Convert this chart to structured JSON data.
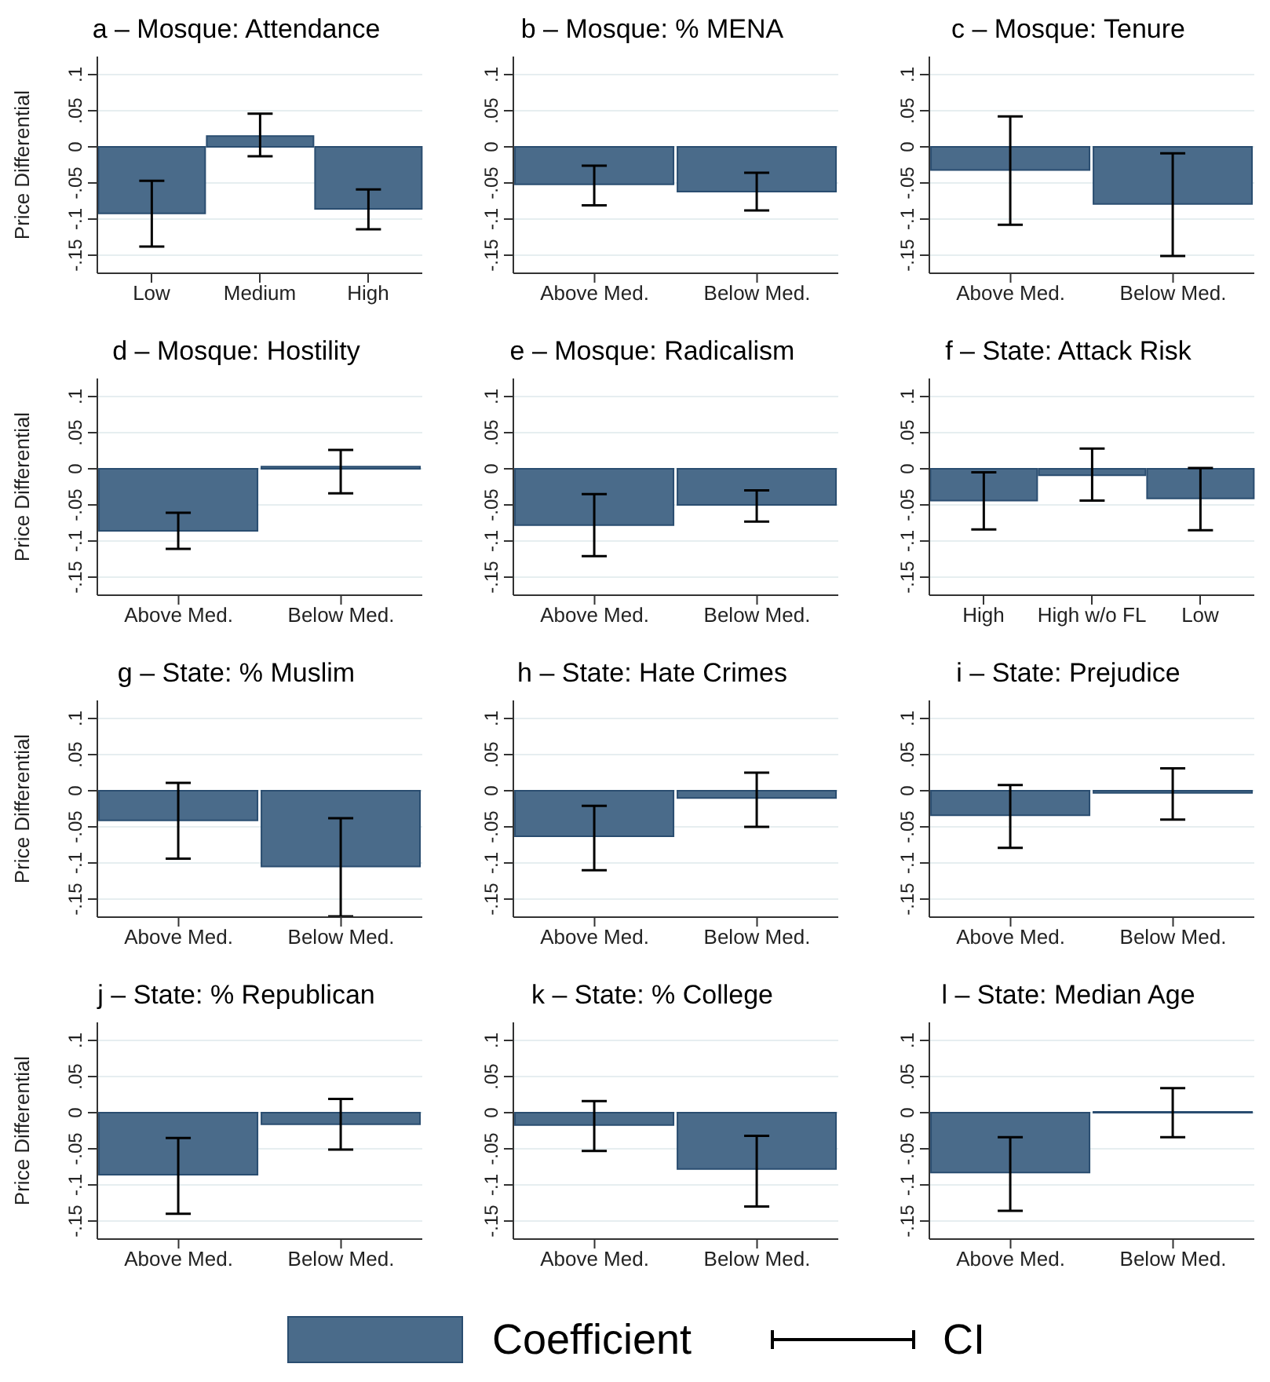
{
  "chart_data": [
    {
      "type": "bar",
      "title": "a – Mosque: Attendance",
      "ylabel": "Price Differential",
      "categories": [
        "Low",
        "Medium",
        "High"
      ],
      "series": [
        {
          "color": "#4a6b8a",
          "values": [
            -0.092,
            0.015,
            -0.086
          ],
          "errors": [
            [
              -0.138,
              -0.047
            ],
            [
              -0.013,
              0.046
            ],
            [
              -0.114,
              -0.059
            ]
          ]
        }
      ],
      "ylim": [
        -0.175,
        0.125
      ],
      "yticks": [
        {
          "value": -0.15,
          "label": "-.15"
        },
        {
          "value": -0.1,
          "label": "-.1"
        },
        {
          "value": -0.05,
          "label": "-.05"
        },
        {
          "value": 0,
          "label": "0"
        },
        {
          "value": 0.05,
          "label": ".05"
        },
        {
          "value": 0.1,
          "label": ".1"
        }
      ],
      "grid": "y"
    },
    {
      "type": "bar",
      "title": "b – Mosque: % MENA",
      "categories": [
        "Above Med.",
        "Below Med."
      ],
      "series": [
        {
          "color": "#4a6b8a",
          "values": [
            -0.052,
            -0.062
          ],
          "errors": [
            [
              -0.081,
              -0.026
            ],
            [
              -0.088,
              -0.036
            ]
          ]
        }
      ],
      "ylim": [
        -0.175,
        0.125
      ],
      "yticks": [
        {
          "value": -0.15,
          "label": "-.15"
        },
        {
          "value": -0.1,
          "label": "-.1"
        },
        {
          "value": -0.05,
          "label": "-.05"
        },
        {
          "value": 0,
          "label": "0"
        },
        {
          "value": 0.05,
          "label": ".05"
        },
        {
          "value": 0.1,
          "label": ".1"
        }
      ],
      "grid": "y"
    },
    {
      "type": "bar",
      "title": "c – Mosque: Tenure",
      "categories": [
        "Above Med.",
        "Below Med."
      ],
      "series": [
        {
          "color": "#4a6b8a",
          "values": [
            -0.032,
            -0.079
          ],
          "errors": [
            [
              -0.108,
              0.042
            ],
            [
              -0.151,
              -0.009
            ]
          ]
        }
      ],
      "ylim": [
        -0.175,
        0.125
      ],
      "yticks": [
        {
          "value": -0.15,
          "label": "-.15"
        },
        {
          "value": -0.1,
          "label": "-.1"
        },
        {
          "value": -0.05,
          "label": "-.05"
        },
        {
          "value": 0,
          "label": "0"
        },
        {
          "value": 0.05,
          "label": ".05"
        },
        {
          "value": 0.1,
          "label": ".1"
        }
      ],
      "grid": "y"
    },
    {
      "type": "bar",
      "title": "d – Mosque: Hostility",
      "ylabel": "Price Differential",
      "categories": [
        "Above Med.",
        "Below Med."
      ],
      "series": [
        {
          "color": "#4a6b8a",
          "values": [
            -0.086,
            0.003
          ],
          "errors": [
            [
              -0.111,
              -0.061
            ],
            [
              -0.034,
              0.026
            ]
          ]
        }
      ],
      "ylim": [
        -0.175,
        0.125
      ],
      "yticks": [
        {
          "value": -0.15,
          "label": "-.15"
        },
        {
          "value": -0.1,
          "label": "-.1"
        },
        {
          "value": -0.05,
          "label": "-.05"
        },
        {
          "value": 0,
          "label": "0"
        },
        {
          "value": 0.05,
          "label": ".05"
        },
        {
          "value": 0.1,
          "label": ".1"
        }
      ],
      "grid": "y"
    },
    {
      "type": "bar",
      "title": "e – Mosque: Radicalism",
      "categories": [
        "Above Med.",
        "Below Med."
      ],
      "series": [
        {
          "color": "#4a6b8a",
          "values": [
            -0.078,
            -0.05
          ],
          "errors": [
            [
              -0.121,
              -0.035
            ],
            [
              -0.073,
              -0.03
            ]
          ]
        }
      ],
      "ylim": [
        -0.175,
        0.125
      ],
      "yticks": [
        {
          "value": -0.15,
          "label": "-.15"
        },
        {
          "value": -0.1,
          "label": "-.1"
        },
        {
          "value": -0.05,
          "label": "-.05"
        },
        {
          "value": 0,
          "label": "0"
        },
        {
          "value": 0.05,
          "label": ".05"
        },
        {
          "value": 0.1,
          "label": ".1"
        }
      ],
      "grid": "y"
    },
    {
      "type": "bar",
      "title": "f – State: Attack Risk",
      "categories": [
        "High",
        "High w/o FL",
        "Low"
      ],
      "series": [
        {
          "color": "#4a6b8a",
          "values": [
            -0.044,
            -0.009,
            -0.041
          ],
          "errors": [
            [
              -0.084,
              -0.005
            ],
            [
              -0.044,
              0.028
            ],
            [
              -0.085,
              0.001
            ]
          ]
        }
      ],
      "ylim": [
        -0.175,
        0.125
      ],
      "yticks": [
        {
          "value": -0.15,
          "label": "-.15"
        },
        {
          "value": -0.1,
          "label": "-.1"
        },
        {
          "value": -0.05,
          "label": "-.05"
        },
        {
          "value": 0,
          "label": "0"
        },
        {
          "value": 0.05,
          "label": ".05"
        },
        {
          "value": 0.1,
          "label": ".1"
        }
      ],
      "grid": "y"
    },
    {
      "type": "bar",
      "title": "g – State: % Muslim",
      "ylabel": "Price Differential",
      "categories": [
        "Above Med.",
        "Below Med."
      ],
      "series": [
        {
          "color": "#4a6b8a",
          "values": [
            -0.041,
            -0.105
          ],
          "errors": [
            [
              -0.094,
              0.011
            ],
            [
              -0.174,
              -0.038
            ]
          ]
        }
      ],
      "ylim": [
        -0.175,
        0.125
      ],
      "yticks": [
        {
          "value": -0.15,
          "label": "-.15"
        },
        {
          "value": -0.1,
          "label": "-.1"
        },
        {
          "value": -0.05,
          "label": "-.05"
        },
        {
          "value": 0,
          "label": "0"
        },
        {
          "value": 0.05,
          "label": ".05"
        },
        {
          "value": 0.1,
          "label": ".1"
        }
      ],
      "grid": "y"
    },
    {
      "type": "bar",
      "title": "h – State: Hate Crimes",
      "categories": [
        "Above Med.",
        "Below Med."
      ],
      "series": [
        {
          "color": "#4a6b8a",
          "values": [
            -0.063,
            -0.01
          ],
          "errors": [
            [
              -0.11,
              -0.021
            ],
            [
              -0.05,
              0.025
            ]
          ]
        }
      ],
      "ylim": [
        -0.175,
        0.125
      ],
      "yticks": [
        {
          "value": -0.15,
          "label": "-.15"
        },
        {
          "value": -0.1,
          "label": "-.1"
        },
        {
          "value": -0.05,
          "label": "-.05"
        },
        {
          "value": 0,
          "label": "0"
        },
        {
          "value": 0.05,
          "label": ".05"
        },
        {
          "value": 0.1,
          "label": ".1"
        }
      ],
      "grid": "y"
    },
    {
      "type": "bar",
      "title": "i – State: Prejudice",
      "categories": [
        "Above Med.",
        "Below Med."
      ],
      "series": [
        {
          "color": "#4a6b8a",
          "values": [
            -0.034,
            -0.003
          ],
          "errors": [
            [
              -0.079,
              0.008
            ],
            [
              -0.04,
              0.031
            ]
          ]
        }
      ],
      "ylim": [
        -0.175,
        0.125
      ],
      "yticks": [
        {
          "value": -0.15,
          "label": "-.15"
        },
        {
          "value": -0.1,
          "label": "-.1"
        },
        {
          "value": -0.05,
          "label": "-.05"
        },
        {
          "value": 0,
          "label": "0"
        },
        {
          "value": 0.05,
          "label": ".05"
        },
        {
          "value": 0.1,
          "label": ".1"
        }
      ],
      "grid": "y"
    },
    {
      "type": "bar",
      "title": "j – State: % Republican",
      "ylabel": "Price Differential",
      "categories": [
        "Above Med.",
        "Below Med."
      ],
      "series": [
        {
          "color": "#4a6b8a",
          "values": [
            -0.086,
            -0.016
          ],
          "errors": [
            [
              -0.14,
              -0.035
            ],
            [
              -0.051,
              0.019
            ]
          ]
        }
      ],
      "ylim": [
        -0.175,
        0.125
      ],
      "yticks": [
        {
          "value": -0.15,
          "label": "-.15"
        },
        {
          "value": -0.1,
          "label": "-.1"
        },
        {
          "value": -0.05,
          "label": "-.05"
        },
        {
          "value": 0,
          "label": "0"
        },
        {
          "value": 0.05,
          "label": ".05"
        },
        {
          "value": 0.1,
          "label": ".1"
        }
      ],
      "grid": "y"
    },
    {
      "type": "bar",
      "title": "k – State: % College",
      "categories": [
        "Above Med.",
        "Below Med."
      ],
      "series": [
        {
          "color": "#4a6b8a",
          "values": [
            -0.017,
            -0.078
          ],
          "errors": [
            [
              -0.053,
              0.016
            ],
            [
              -0.13,
              -0.032
            ]
          ]
        }
      ],
      "ylim": [
        -0.175,
        0.125
      ],
      "yticks": [
        {
          "value": -0.15,
          "label": "-.15"
        },
        {
          "value": -0.1,
          "label": "-.1"
        },
        {
          "value": -0.05,
          "label": "-.05"
        },
        {
          "value": 0,
          "label": "0"
        },
        {
          "value": 0.05,
          "label": ".05"
        },
        {
          "value": 0.1,
          "label": ".1"
        }
      ],
      "grid": "y"
    },
    {
      "type": "bar",
      "title": "l – State: Median Age",
      "categories": [
        "Above Med.",
        "Below Med."
      ],
      "series": [
        {
          "color": "#4a6b8a",
          "values": [
            -0.083,
            0.001
          ],
          "errors": [
            [
              -0.136,
              -0.034
            ],
            [
              -0.034,
              0.034
            ]
          ]
        }
      ],
      "ylim": [
        -0.175,
        0.125
      ],
      "yticks": [
        {
          "value": -0.15,
          "label": "-.15"
        },
        {
          "value": -0.1,
          "label": "-.1"
        },
        {
          "value": -0.05,
          "label": "-.05"
        },
        {
          "value": 0,
          "label": "0"
        },
        {
          "value": 0.05,
          "label": ".05"
        },
        {
          "value": 0.1,
          "label": ".1"
        }
      ],
      "grid": "y"
    },
    {
      "type": "other",
      "legend": "bottom",
      "series": [
        {
          "name": "Coefficient",
          "color": "#4a6b8a"
        },
        {
          "name": "CI",
          "color": "#000000"
        }
      ]
    }
  ]
}
